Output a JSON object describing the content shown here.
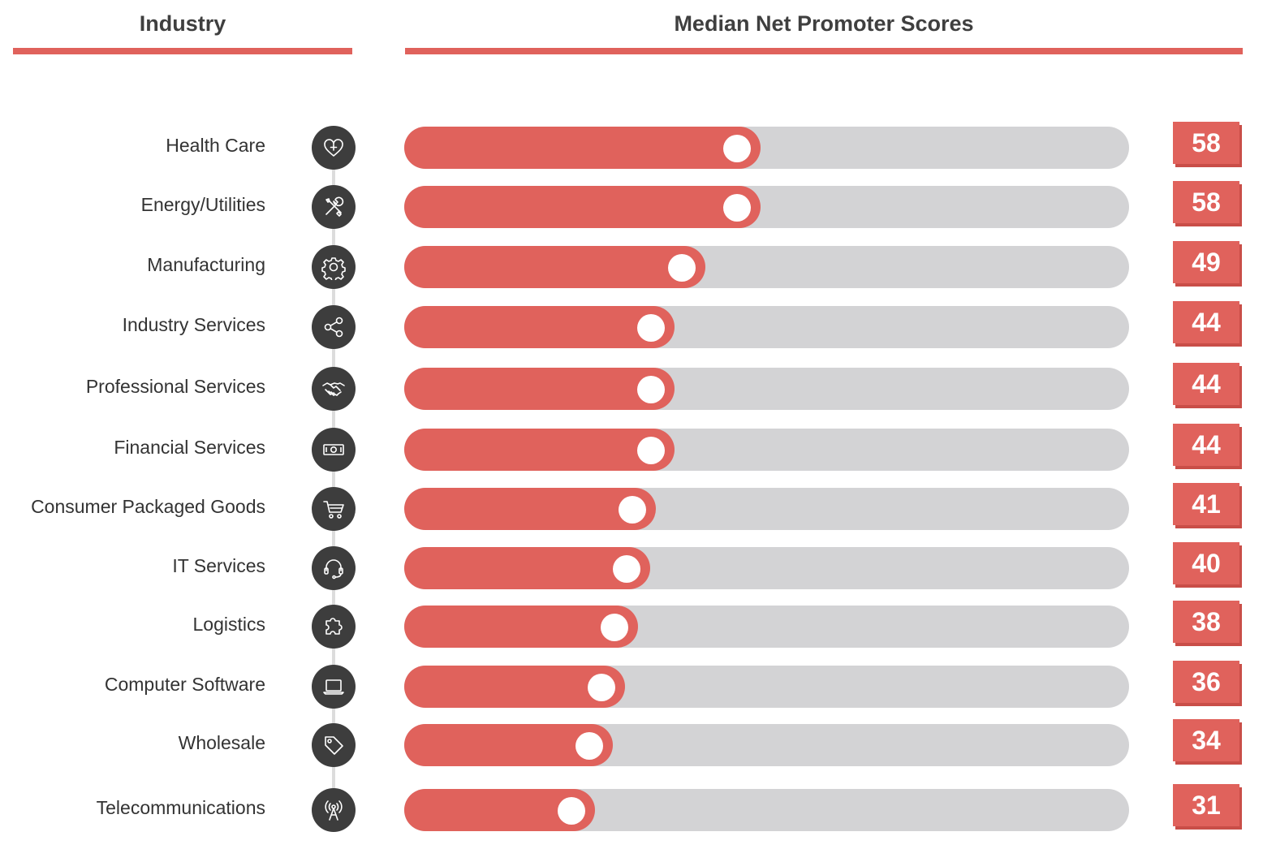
{
  "headers": {
    "industry": "Industry",
    "scores": "Median Net Promoter Scores"
  },
  "colors": {
    "accent": "#e0625c",
    "track": "#d3d3d5",
    "icon_bg": "#3d3d3d"
  },
  "chart_data": {
    "type": "bar",
    "orientation": "horizontal",
    "title": "Median Net Promoter Scores",
    "xlabel": "",
    "ylabel": "Industry",
    "xlim": [
      0,
      118
    ],
    "categories": [
      "Health Care",
      "Energy/Utilities",
      "Manufacturing",
      "Industry Services",
      "Professional Services",
      "Financial Services",
      "Consumer Packaged Goods",
      "IT Services",
      "Logistics",
      "Computer Software",
      "Wholesale",
      "Telecommunications"
    ],
    "values": [
      58,
      58,
      49,
      44,
      44,
      44,
      41,
      40,
      38,
      36,
      34,
      31
    ],
    "icons": [
      "heart-plus-icon",
      "tools-icon",
      "gear-icon",
      "share-icon",
      "handshake-icon",
      "money-icon",
      "cart-icon",
      "headset-icon",
      "puzzle-icon",
      "laptop-icon",
      "tag-icon",
      "antenna-icon"
    ],
    "rows": [
      {
        "label": "Health Care",
        "value": "58",
        "icon": "heart-plus-icon"
      },
      {
        "label": "Energy/Utilities",
        "value": "58",
        "icon": "tools-icon"
      },
      {
        "label": "Manufacturing",
        "value": "49",
        "icon": "gear-icon"
      },
      {
        "label": "Industry Services",
        "value": "44",
        "icon": "share-icon"
      },
      {
        "label": "Professional Services",
        "value": "44",
        "icon": "handshake-icon"
      },
      {
        "label": "Financial Services",
        "value": "44",
        "icon": "money-icon"
      },
      {
        "label": "Consumer Packaged Goods",
        "value": "41",
        "icon": "cart-icon"
      },
      {
        "label": "IT Services",
        "value": "40",
        "icon": "headset-icon"
      },
      {
        "label": "Logistics",
        "value": "38",
        "icon": "puzzle-icon"
      },
      {
        "label": "Computer Software",
        "value": "36",
        "icon": "laptop-icon"
      },
      {
        "label": "Wholesale",
        "value": "34",
        "icon": "tag-icon"
      },
      {
        "label": "Telecommunications",
        "value": "31",
        "icon": "antenna-icon"
      }
    ]
  }
}
